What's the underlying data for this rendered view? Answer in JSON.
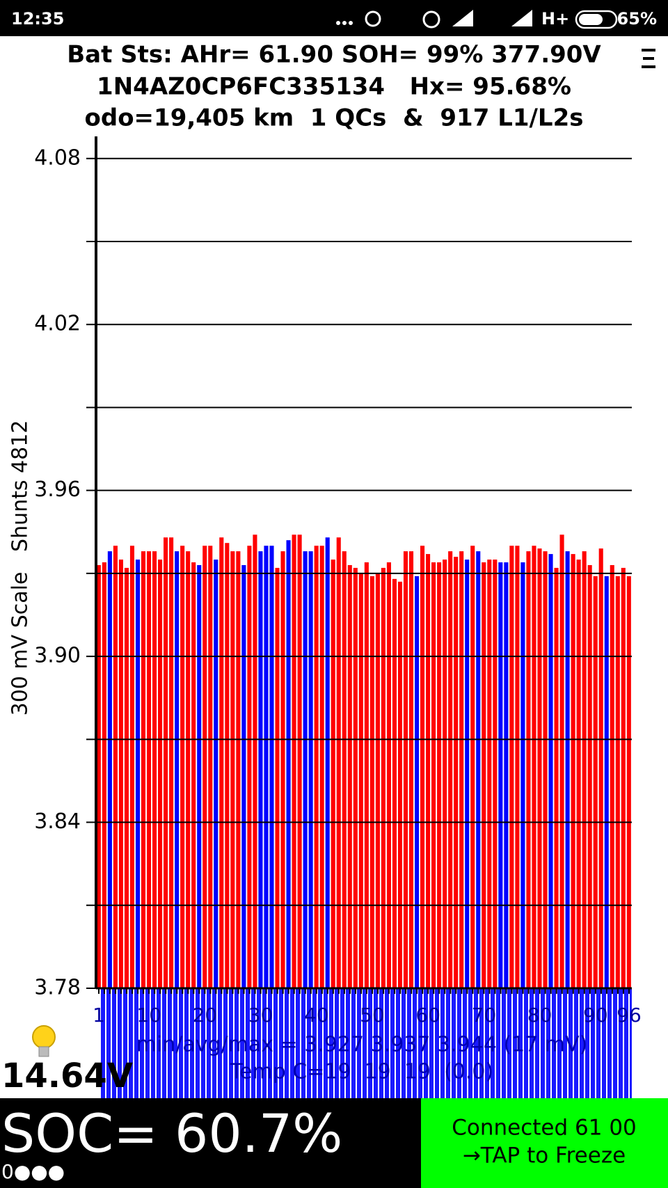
{
  "status_bar": {
    "time": "12:35",
    "network": "H+",
    "battery": "65%"
  },
  "header": {
    "lines": [
      "Bat Sts: AHr= 61.90 SOH= 99% 377.90V",
      "1N4AZ0CP6FC335134   Hx= 95.68%",
      "odo=19,405 km  1 QCs  &  917 L1/L2s"
    ]
  },
  "chart_data": {
    "type": "bar",
    "y_label": "300 mV Scale   Shunts 4812",
    "categories": [
      "1",
      null,
      null,
      null,
      null,
      null,
      null,
      null,
      null,
      "10",
      null,
      null,
      null,
      null,
      null,
      null,
      null,
      null,
      null,
      "20",
      null,
      null,
      null,
      null,
      null,
      null,
      null,
      null,
      null,
      "30",
      null,
      null,
      null,
      null,
      null,
      null,
      null,
      null,
      null,
      "40",
      null,
      null,
      null,
      null,
      null,
      null,
      null,
      null,
      null,
      "50",
      null,
      null,
      null,
      null,
      null,
      null,
      null,
      null,
      null,
      "60",
      null,
      null,
      null,
      null,
      null,
      null,
      null,
      null,
      null,
      "70",
      null,
      null,
      null,
      null,
      null,
      null,
      null,
      null,
      null,
      "80",
      null,
      null,
      null,
      null,
      null,
      null,
      null,
      null,
      null,
      "90",
      null,
      null,
      null,
      null,
      null,
      "96"
    ],
    "values": [
      3.933,
      3.934,
      3.938,
      3.94,
      3.935,
      3.932,
      3.94,
      3.935,
      3.938,
      3.938,
      3.938,
      3.935,
      3.943,
      3.943,
      3.938,
      3.94,
      3.938,
      3.934,
      3.933,
      3.94,
      3.94,
      3.935,
      3.943,
      3.941,
      3.938,
      3.938,
      3.933,
      3.94,
      3.944,
      3.938,
      3.94,
      3.94,
      3.932,
      3.938,
      3.942,
      3.944,
      3.944,
      3.938,
      3.938,
      3.94,
      3.94,
      3.943,
      3.935,
      3.943,
      3.938,
      3.933,
      3.932,
      3.93,
      3.934,
      3.929,
      3.93,
      3.932,
      3.934,
      3.928,
      3.927,
      3.938,
      3.938,
      3.929,
      3.94,
      3.937,
      3.934,
      3.934,
      3.935,
      3.938,
      3.936,
      3.938,
      3.935,
      3.94,
      3.938,
      3.934,
      3.935,
      3.935,
      3.934,
      3.934,
      3.94,
      3.94,
      3.934,
      3.938,
      3.94,
      3.939,
      3.938,
      3.937,
      3.932,
      3.944,
      3.938,
      3.937,
      3.935,
      3.938,
      3.933,
      3.929,
      3.939,
      3.929,
      3.933,
      3.929,
      3.932,
      3.929
    ],
    "colors": [
      "red",
      "red",
      "blue",
      "red",
      "red",
      "red",
      "red",
      "blue",
      "red",
      "red",
      "red",
      "red",
      "red",
      "red",
      "blue",
      "red",
      "red",
      "red",
      "blue",
      "red",
      "red",
      "blue",
      "red",
      "red",
      "red",
      "red",
      "blue",
      "red",
      "red",
      "blue",
      "blue",
      "blue",
      "red",
      "red",
      "blue",
      "red",
      "red",
      "blue",
      "blue",
      "red",
      "red",
      "blue",
      "red",
      "red",
      "red",
      "red",
      "red",
      "red",
      "red",
      "red",
      "red",
      "red",
      "red",
      "red",
      "red",
      "red",
      "red",
      "blue",
      "red",
      "red",
      "red",
      "red",
      "red",
      "red",
      "red",
      "red",
      "blue",
      "red",
      "blue",
      "red",
      "red",
      "red",
      "blue",
      "blue",
      "red",
      "red",
      "blue",
      "red",
      "red",
      "red",
      "red",
      "blue",
      "red",
      "red",
      "blue",
      "red",
      "red",
      "red",
      "red",
      "red",
      "red",
      "blue",
      "red",
      "red",
      "red",
      "red"
    ],
    "ylim": [
      3.78,
      4.088
    ],
    "yticks": [
      3.78,
      3.84,
      {
        "value": 3.9,
        "label": "3.90"
      },
      3.96,
      4.02,
      4.08
    ],
    "minor_yticks": [
      3.81,
      3.87,
      3.93,
      3.99,
      4.05
    ],
    "grid": true,
    "annotations": [
      "min/avg/max = 3.927 3.937 3.944 (17 mV)",
      "Temp C=19  19  19  (0.0)"
    ]
  },
  "footer": {
    "aux_voltage": "14.64V",
    "soc": "SOC= 60.7%",
    "indicator": "0●●●",
    "connection": "Connected 61 00",
    "action": "→TAP to Freeze"
  }
}
